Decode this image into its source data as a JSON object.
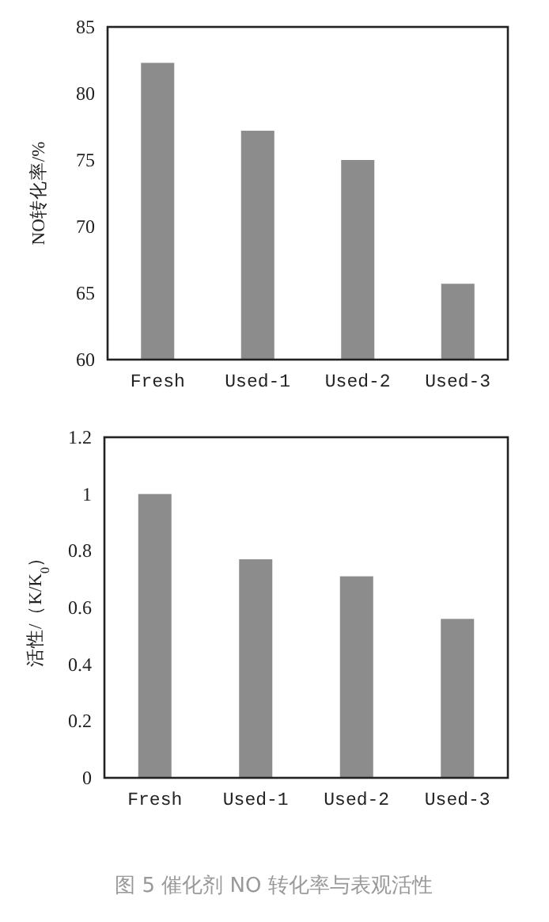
{
  "chart_data": [
    {
      "type": "bar",
      "ylabel": "NO转化率/%",
      "categories": [
        "Fresh",
        "Used-1",
        "Used-2",
        "Used-3"
      ],
      "series": [
        {
          "color": "#8c8c8c",
          "values": [
            82.3,
            77.2,
            75.0,
            65.7
          ]
        }
      ],
      "ylim": [
        60,
        85
      ],
      "yticks": [
        60,
        65,
        70,
        75,
        80,
        85
      ],
      "grid": false
    },
    {
      "type": "bar",
      "ylabel": "活性/（K/K$_{0}$）",
      "categories": [
        "Fresh",
        "Used-1",
        "Used-2",
        "Used-3"
      ],
      "series": [
        {
          "color": "#8c8c8c",
          "values": [
            1.0,
            0.77,
            0.71,
            0.56
          ]
        }
      ],
      "ylim": [
        0,
        1.2
      ],
      "yticks": [
        0,
        0.2,
        0.4,
        0.6,
        0.8,
        1,
        1.2
      ],
      "grid": false,
      "annotations": [
        "图 5 催化剂 NO 转化率与表观活性"
      ]
    }
  ]
}
